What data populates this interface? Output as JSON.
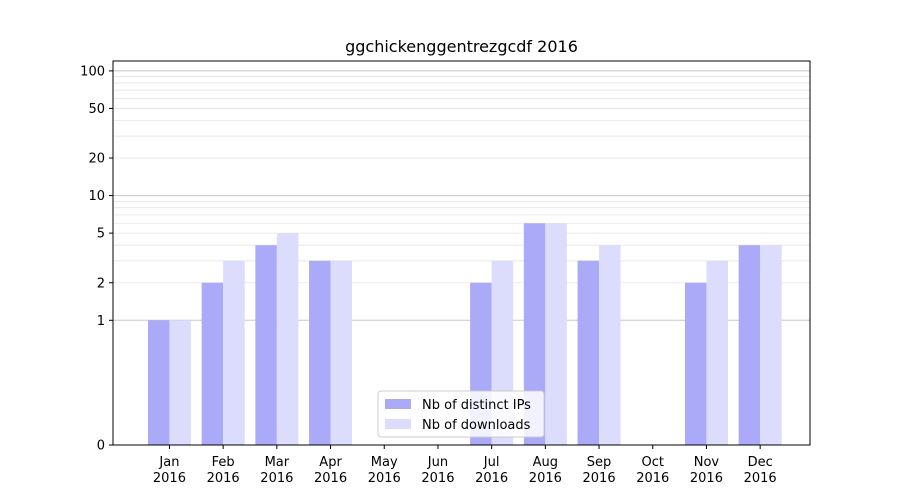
{
  "chart_data": {
    "type": "bar",
    "title": "ggchickenggentrezgcdf 2016",
    "xlabel": "",
    "ylabel": "",
    "yscale": "symlog",
    "ylim": [
      0,
      120
    ],
    "yticks": [
      0,
      1,
      2,
      5,
      10,
      20,
      50,
      100
    ],
    "yticklabels": [
      "0",
      "1",
      "2",
      "5",
      "10",
      "20",
      "50",
      "100"
    ],
    "categories": [
      "Jan\n2016",
      "Feb\n2016",
      "Mar\n2016",
      "Apr\n2016",
      "May\n2016",
      "Jun\n2016",
      "Jul\n2016",
      "Aug\n2016",
      "Sep\n2016",
      "Oct\n2016",
      "Nov\n2016",
      "Dec\n2016"
    ],
    "category_lines": [
      [
        "Jan",
        "2016"
      ],
      [
        "Feb",
        "2016"
      ],
      [
        "Mar",
        "2016"
      ],
      [
        "Apr",
        "2016"
      ],
      [
        "May",
        "2016"
      ],
      [
        "Jun",
        "2016"
      ],
      [
        "Jul",
        "2016"
      ],
      [
        "Aug",
        "2016"
      ],
      [
        "Sep",
        "2016"
      ],
      [
        "Oct",
        "2016"
      ],
      [
        "Nov",
        "2016"
      ],
      [
        "Dec",
        "2016"
      ]
    ],
    "series": [
      {
        "name": "Nb of distinct IPs",
        "color": "#aaaaf8",
        "values": [
          1,
          2,
          4,
          3,
          0,
          0,
          2,
          6,
          3,
          0,
          2,
          4
        ]
      },
      {
        "name": "Nb of downloads",
        "color": "#dcdcfc",
        "values": [
          1,
          3,
          5,
          3,
          0,
          0,
          3,
          6,
          4,
          0,
          3,
          4
        ]
      }
    ],
    "grid": true,
    "legend_position": "bottom-center"
  }
}
